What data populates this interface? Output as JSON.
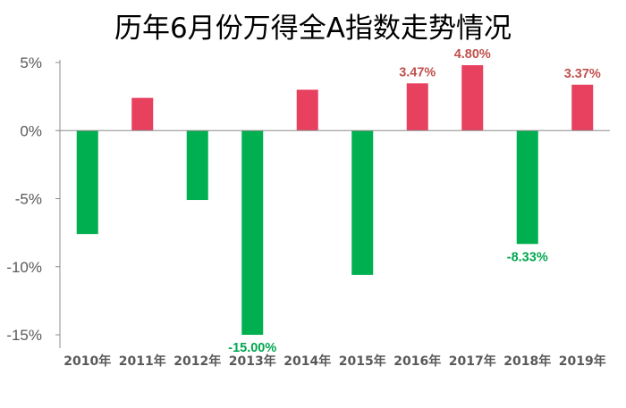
{
  "chart_data": {
    "type": "bar",
    "title": "历年6月份万得全A指数走势情况",
    "categories": [
      "2010年",
      "2011年",
      "2012年",
      "2013年",
      "2014年",
      "2015年",
      "2016年",
      "2017年",
      "2018年",
      "2019年"
    ],
    "values": [
      -7.6,
      2.4,
      -5.1,
      -15.0,
      3.0,
      -10.6,
      3.47,
      4.8,
      -8.33,
      3.37
    ],
    "data_labels": [
      "",
      "",
      "",
      "-15.00%",
      "",
      "",
      "3.47%",
      "4.80%",
      "-8.33%",
      "3.37%"
    ],
    "ylim": [
      -15,
      5
    ],
    "yticks": [
      5,
      0,
      -5,
      -10,
      -15
    ],
    "ytick_labels": [
      "5%",
      "0%",
      "-5%",
      "-10%",
      "-15%"
    ],
    "xlabel": "",
    "ylabel": "",
    "grid": false,
    "legend": "none",
    "colors": {
      "positive": "#e8405f",
      "negative": "#00b050",
      "positive_label": "#c0504d",
      "negative_label": "#00a650"
    }
  }
}
